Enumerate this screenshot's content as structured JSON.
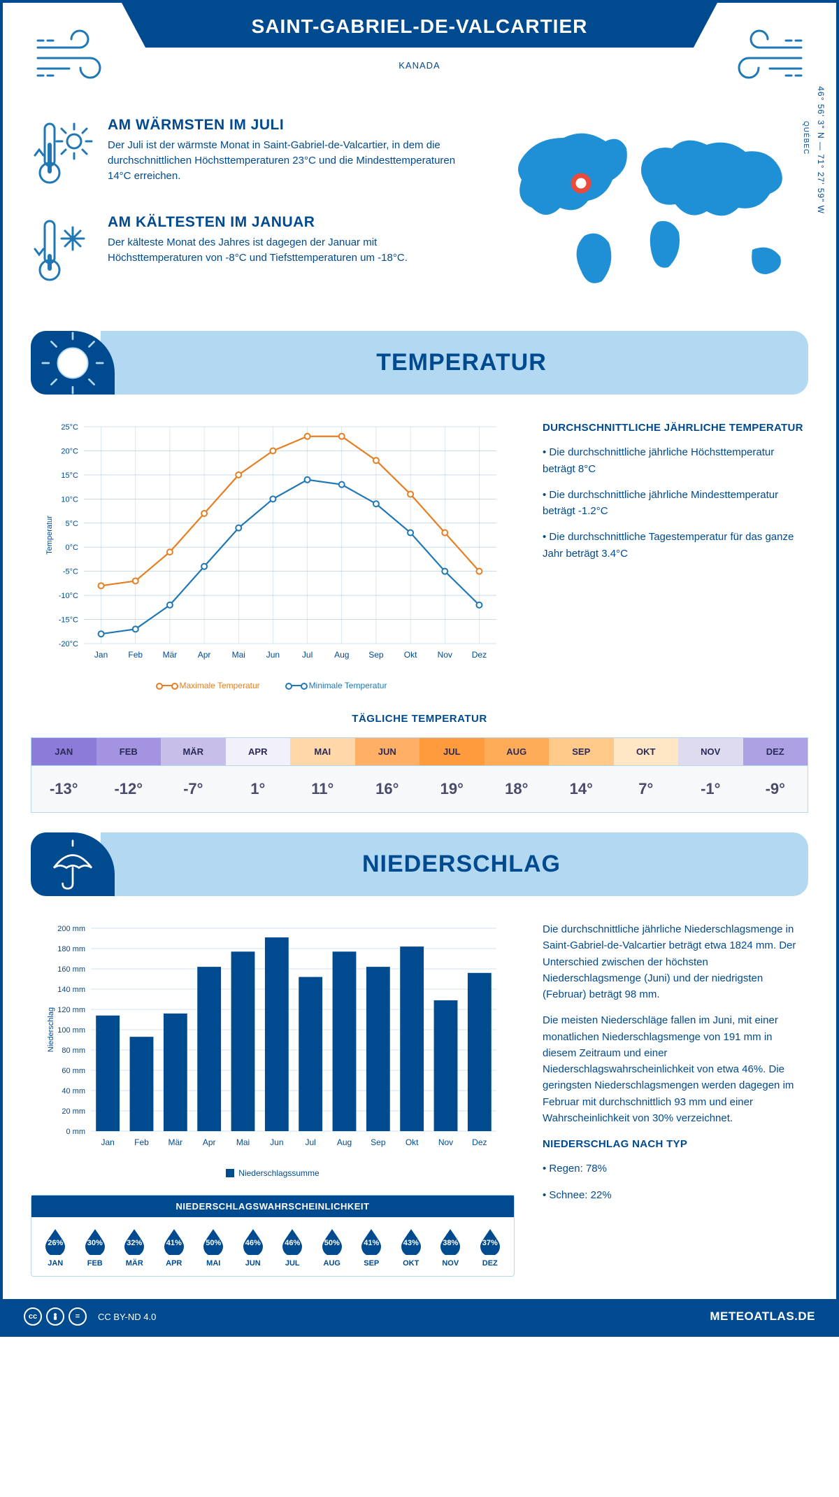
{
  "header": {
    "city": "SAINT-GABRIEL-DE-VALCARTIER",
    "country": "KANADA",
    "region": "QUÉBEC",
    "coords": "46° 56' 3\" N — 71° 27' 59\" W"
  },
  "warm": {
    "title": "AM WÄRMSTEN IM JULI",
    "text": "Der Juli ist der wärmste Monat in Saint-Gabriel-de-Valcartier, in dem die durchschnittlichen Höchsttemperaturen 23°C und die Mindesttemperaturen 14°C erreichen."
  },
  "cold": {
    "title": "AM KÄLTESTEN IM JANUAR",
    "text": "Der kälteste Monat des Jahres ist dagegen der Januar mit Höchsttemperaturen von -8°C und Tiefsttemperaturen um -18°C."
  },
  "sections": {
    "temp": "TEMPERATUR",
    "precip": "NIEDERSCHLAG"
  },
  "months": [
    "Jan",
    "Feb",
    "Mär",
    "Apr",
    "Mai",
    "Jun",
    "Jul",
    "Aug",
    "Sep",
    "Okt",
    "Nov",
    "Dez"
  ],
  "months_upper": [
    "JAN",
    "FEB",
    "MÄR",
    "APR",
    "MAI",
    "JUN",
    "JUL",
    "AUG",
    "SEP",
    "OKT",
    "NOV",
    "DEZ"
  ],
  "temp_chart": {
    "type": "line",
    "ylabel": "Temperatur",
    "ylim": [
      -20,
      25
    ],
    "ytick_step": 5,
    "y_unit": "°C",
    "max_series": [
      -8,
      -7,
      -1,
      7,
      15,
      20,
      23,
      23,
      18,
      11,
      3,
      -5
    ],
    "min_series": [
      -18,
      -17,
      -12,
      -4,
      4,
      10,
      14,
      13,
      9,
      3,
      -5,
      -12
    ],
    "max_color": "#e67e22",
    "min_color": "#1f77b4",
    "grid_color": "#a8c7e0",
    "background_color": "#ffffff",
    "max_label": "Maximale Temperatur",
    "min_label": "Minimale Temperatur"
  },
  "temp_text": {
    "heading": "DURCHSCHNITTLICHE JÄHRLICHE TEMPERATUR",
    "p1": "• Die durchschnittliche jährliche Höchsttemperatur beträgt 8°C",
    "p2": "• Die durchschnittliche jährliche Mindesttemperatur beträgt -1.2°C",
    "p3": "• Die durchschnittliche Tagestemperatur für das ganze Jahr beträgt 3.4°C"
  },
  "daily_temp": {
    "heading": "TÄGLICHE TEMPERATUR",
    "values": [
      "-13°",
      "-12°",
      "-7°",
      "1°",
      "11°",
      "16°",
      "19°",
      "18°",
      "14°",
      "7°",
      "-1°",
      "-9°"
    ],
    "head_colors": [
      "#8d7bd9",
      "#a393e0",
      "#c7bfea",
      "#f2f0fa",
      "#ffd7a8",
      "#ffb066",
      "#ff9a3d",
      "#ffac59",
      "#ffc98a",
      "#ffe6c4",
      "#dedaf0",
      "#ada0e3"
    ],
    "val_text_color": "#4a4a6a"
  },
  "precip_chart": {
    "type": "bar",
    "ylabel": "Niederschlag",
    "ylim": [
      0,
      200
    ],
    "ytick_step": 20,
    "y_unit": " mm",
    "values": [
      114,
      93,
      116,
      162,
      177,
      191,
      152,
      177,
      162,
      182,
      129,
      156
    ],
    "bar_color": "#004a8f",
    "grid_color": "#a8c7e0",
    "bar_width": 0.7,
    "legend": "Niederschlagssumme"
  },
  "precip_text": {
    "p1": "Die durchschnittliche jährliche Niederschlagsmenge in Saint-Gabriel-de-Valcartier beträgt etwa 1824 mm. Der Unterschied zwischen der höchsten Niederschlagsmenge (Juni) und der niedrigsten (Februar) beträgt 98 mm.",
    "p2": "Die meisten Niederschläge fallen im Juni, mit einer monatlichen Niederschlagsmenge von 191 mm in diesem Zeitraum und einer Niederschlagswahrscheinlichkeit von etwa 46%. Die geringsten Niederschlagsmengen werden dagegen im Februar mit durchschnittlich 93 mm und einer Wahrscheinlichkeit von 30% verzeichnet.",
    "h2": "NIEDERSCHLAG NACH TYP",
    "rain": "• Regen: 78%",
    "snow": "• Schnee: 22%"
  },
  "prob": {
    "heading": "NIEDERSCHLAGSWAHRSCHEINLICHKEIT",
    "values": [
      "26%",
      "30%",
      "32%",
      "41%",
      "50%",
      "46%",
      "46%",
      "50%",
      "41%",
      "43%",
      "38%",
      "37%"
    ],
    "drop_color": "#004a8f"
  },
  "footer": {
    "license": "CC BY-ND 4.0",
    "brand": "METEOATLAS.DE"
  },
  "colors": {
    "deep_blue": "#004a8f",
    "mid_blue": "#1f77b4",
    "light_blue": "#b3d9f2",
    "orange": "#e67e22"
  }
}
